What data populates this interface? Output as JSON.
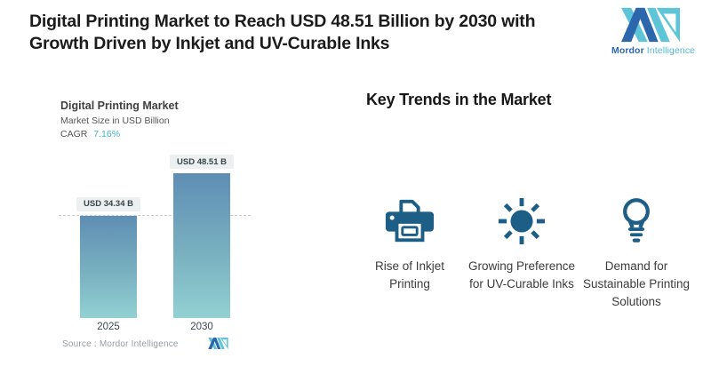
{
  "header": {
    "title": "Digital Printing Market to Reach USD 48.51 Billion by 2030 with\nGrowth Driven by Inkjet and UV-Curable Inks",
    "brand_name": "Mordor",
    "brand_suffix": "Intelligence"
  },
  "chart": {
    "title": "Digital Printing Market",
    "subtitle": "Market Size in USD Billion",
    "cagr_label": "CAGR",
    "cagr_value": "7.16%",
    "source": "Source :  Mordor Intelligence",
    "chart_data": {
      "type": "bar",
      "title": "Digital Printing Market",
      "ylabel": "Market Size in USD Billion",
      "cagr": "7.16%",
      "categories": [
        "2025",
        "2030"
      ],
      "values": [
        34.34,
        48.51
      ],
      "value_labels": [
        "USD 34.34 B",
        "USD 48.51 B"
      ],
      "reference_line_at": 34.34,
      "grid": false,
      "legend": false,
      "bar_color_top": "#5e8eb4",
      "bar_color_bottom": "#92d1d3"
    }
  },
  "trends": {
    "heading": "Key Trends in the Market",
    "items": [
      {
        "icon": "printer-icon",
        "label": "Rise of Inkjet\nPrinting"
      },
      {
        "icon": "uv-sun-icon",
        "label": "Growing Preference\nfor UV-Curable Inks"
      },
      {
        "icon": "lightbulb-icon",
        "label": "Demand for\nSustainable Printing\nSolutions"
      }
    ]
  },
  "colors": {
    "accent_teal": "#3fb4c9",
    "icon_blue": "#1d5e86",
    "brand_dark_blue": "#2c67ad",
    "brand_teal": "#5ec5d9"
  }
}
